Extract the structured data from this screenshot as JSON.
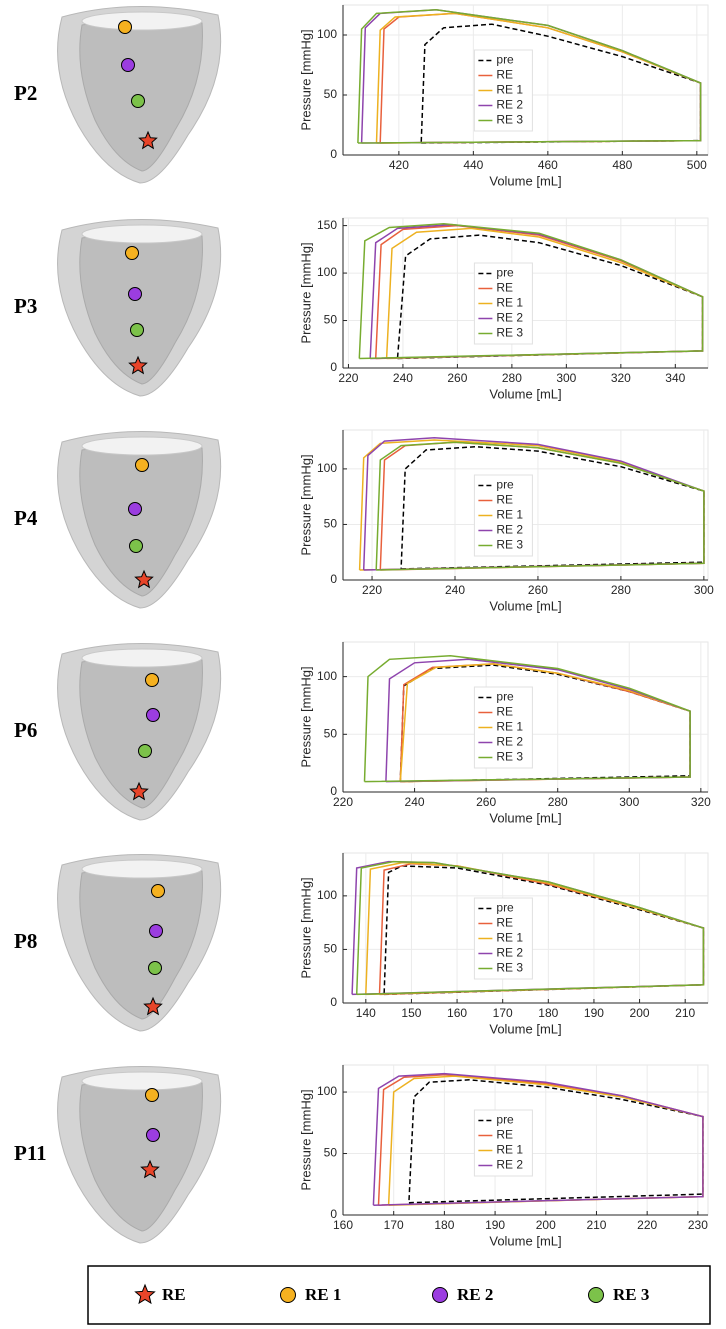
{
  "panels": [
    "P2",
    "P3",
    "P4",
    "P6",
    "P8",
    "P11"
  ],
  "marker_legend": [
    "RE",
    "RE 1",
    "RE 2",
    "RE 3"
  ],
  "chart_data": [
    {
      "type": "line",
      "xlabel": "Volume [mL]",
      "ylabel": "Pressure [mmHg]",
      "grid": true,
      "legend": "center",
      "xlim": [
        405,
        503
      ],
      "xticks": [
        420,
        440,
        460,
        480,
        500
      ],
      "ylim": [
        0,
        125
      ],
      "yticks": [
        0,
        50,
        100
      ],
      "series": [
        {
          "name": "pre",
          "color": "#000000",
          "line_style": "dashed",
          "x": [
            426,
            501,
            501,
            480,
            460,
            445,
            432,
            427,
            426
          ],
          "values": [
            10,
            12,
            60,
            82,
            99,
            109,
            106,
            92,
            10
          ]
        },
        {
          "name": "RE",
          "color": "#e8603c",
          "x": [
            415,
            501,
            501,
            480,
            460,
            435,
            420,
            416,
            415
          ],
          "values": [
            10,
            12,
            60,
            86,
            106,
            118,
            115,
            105,
            10
          ]
        },
        {
          "name": "RE 1",
          "color": "#edb120",
          "x": [
            414,
            501,
            501,
            480,
            460,
            435,
            419,
            415,
            414
          ],
          "values": [
            10,
            12,
            60,
            86,
            106,
            118,
            115,
            104,
            10
          ]
        },
        {
          "name": "RE 2",
          "color": "#8e44ad",
          "x": [
            410,
            501,
            501,
            480,
            460,
            430,
            415,
            411,
            410
          ],
          "values": [
            10,
            12,
            60,
            87,
            108,
            121,
            118,
            106,
            10
          ]
        },
        {
          "name": "RE 3",
          "color": "#77ac30",
          "x": [
            409,
            501,
            501,
            480,
            460,
            430,
            414,
            410,
            409
          ],
          "values": [
            10,
            12,
            60,
            87,
            108,
            121,
            118,
            105,
            10
          ]
        }
      ]
    },
    {
      "type": "line",
      "xlabel": "Volume [mL]",
      "ylabel": "Pressure [mmHg]",
      "grid": true,
      "legend": "center",
      "xlim": [
        218,
        352
      ],
      "xticks": [
        220,
        240,
        260,
        280,
        300,
        320,
        340
      ],
      "ylim": [
        0,
        158
      ],
      "yticks": [
        0,
        50,
        100,
        150
      ],
      "series": [
        {
          "name": "pre",
          "color": "#000000",
          "line_style": "dashed",
          "x": [
            238,
            350,
            350,
            320,
            290,
            268,
            250,
            241,
            238
          ],
          "values": [
            10,
            18,
            75,
            108,
            132,
            140,
            136,
            118,
            10
          ]
        },
        {
          "name": "RE",
          "color": "#e8603c",
          "x": [
            230,
            350,
            350,
            320,
            290,
            260,
            240,
            232,
            230
          ],
          "values": [
            10,
            18,
            75,
            113,
            140,
            150,
            146,
            130,
            10
          ]
        },
        {
          "name": "RE 1",
          "color": "#edb120",
          "x": [
            234,
            350,
            350,
            320,
            290,
            265,
            245,
            236,
            234
          ],
          "values": [
            10,
            18,
            75,
            111,
            138,
            147,
            143,
            126,
            10
          ]
        },
        {
          "name": "RE 2",
          "color": "#8e44ad",
          "x": [
            228,
            350,
            350,
            320,
            290,
            258,
            238,
            230,
            228
          ],
          "values": [
            10,
            18,
            75,
            114,
            141,
            151,
            147,
            132,
            10
          ]
        },
        {
          "name": "RE 3",
          "color": "#77ac30",
          "x": [
            224,
            350,
            350,
            320,
            290,
            255,
            235,
            226,
            224
          ],
          "values": [
            10,
            18,
            75,
            114,
            142,
            152,
            148,
            134,
            10
          ]
        }
      ]
    },
    {
      "type": "line",
      "xlabel": "Volume [mL]",
      "ylabel": "Pressure [mmHg]",
      "grid": true,
      "legend": "center",
      "xlim": [
        213,
        301
      ],
      "xticks": [
        220,
        240,
        260,
        280,
        300
      ],
      "ylim": [
        0,
        135
      ],
      "yticks": [
        0,
        50,
        100
      ],
      "series": [
        {
          "name": "pre",
          "color": "#000000",
          "line_style": "dashed",
          "x": [
            227,
            300,
            300,
            280,
            260,
            245,
            233,
            228,
            227
          ],
          "values": [
            10,
            16,
            80,
            102,
            116,
            120,
            117,
            100,
            10
          ]
        },
        {
          "name": "RE",
          "color": "#e8603c",
          "x": [
            222,
            300,
            300,
            280,
            260,
            240,
            228,
            223,
            222
          ],
          "values": [
            9,
            15,
            80,
            105,
            119,
            124,
            121,
            108,
            9
          ]
        },
        {
          "name": "RE 1",
          "color": "#edb120",
          "x": [
            217,
            300,
            300,
            280,
            260,
            235,
            222,
            218,
            217
          ],
          "values": [
            9,
            15,
            80,
            106,
            121,
            126,
            123,
            110,
            9
          ]
        },
        {
          "name": "RE 2",
          "color": "#8e44ad",
          "x": [
            218,
            300,
            300,
            280,
            260,
            235,
            223,
            219,
            218
          ],
          "values": [
            9,
            15,
            80,
            107,
            122,
            128,
            125,
            112,
            9
          ]
        },
        {
          "name": "RE 3",
          "color": "#77ac30",
          "x": [
            221,
            300,
            300,
            280,
            260,
            240,
            227,
            222,
            221
          ],
          "values": [
            9,
            15,
            80,
            105,
            119,
            124,
            121,
            108,
            9
          ]
        }
      ]
    },
    {
      "type": "line",
      "xlabel": "Volume [mL]",
      "ylabel": "Pressure [mmHg]",
      "grid": true,
      "legend": "center",
      "xlim": [
        220,
        322
      ],
      "xticks": [
        220,
        240,
        260,
        280,
        300,
        320
      ],
      "ylim": [
        0,
        130
      ],
      "yticks": [
        0,
        50,
        100
      ],
      "series": [
        {
          "name": "pre",
          "color": "#000000",
          "line_style": "dashed",
          "x": [
            236,
            317,
            317,
            300,
            280,
            262,
            245,
            237,
            236
          ],
          "values": [
            9,
            14,
            70,
            87,
            102,
            110,
            107,
            92,
            9
          ]
        },
        {
          "name": "RE",
          "color": "#e8603c",
          "x": [
            236,
            317,
            317,
            300,
            280,
            262,
            245,
            237,
            236
          ],
          "values": [
            9,
            13,
            70,
            87,
            103,
            111,
            108,
            93,
            9
          ]
        },
        {
          "name": "RE 1",
          "color": "#edb120",
          "x": [
            236,
            317,
            317,
            300,
            280,
            262,
            246,
            238,
            236
          ],
          "values": [
            9,
            13,
            70,
            88,
            103,
            111,
            108,
            94,
            9
          ]
        },
        {
          "name": "RE 2",
          "color": "#8e44ad",
          "x": [
            232,
            317,
            317,
            300,
            280,
            255,
            240,
            233,
            232
          ],
          "values": [
            9,
            13,
            70,
            89,
            106,
            115,
            112,
            98,
            9
          ]
        },
        {
          "name": "RE 3",
          "color": "#77ac30",
          "x": [
            226,
            317,
            317,
            300,
            280,
            250,
            233,
            227,
            226
          ],
          "values": [
            9,
            13,
            70,
            90,
            107,
            118,
            115,
            100,
            9
          ]
        }
      ]
    },
    {
      "type": "line",
      "xlabel": "Volume [mL]",
      "ylabel": "Pressure [mmHg]",
      "grid": true,
      "legend": "center",
      "xlim": [
        135,
        215
      ],
      "xticks": [
        140,
        150,
        160,
        170,
        180,
        190,
        200,
        210
      ],
      "ylim": [
        0,
        140
      ],
      "yticks": [
        0,
        50,
        100
      ],
      "series": [
        {
          "name": "pre",
          "color": "#000000",
          "line_style": "dashed",
          "x": [
            144,
            214,
            214,
            200,
            180,
            160,
            148,
            145,
            144
          ],
          "values": [
            8,
            17,
            70,
            87,
            110,
            126,
            128,
            122,
            8
          ]
        },
        {
          "name": "RE",
          "color": "#e8603c",
          "x": [
            143,
            214,
            214,
            200,
            180,
            160,
            150,
            144,
            143
          ],
          "values": [
            8,
            17,
            70,
            88,
            111,
            128,
            130,
            124,
            8
          ]
        },
        {
          "name": "RE 1",
          "color": "#edb120",
          "x": [
            140,
            214,
            214,
            200,
            180,
            160,
            148,
            141,
            140
          ],
          "values": [
            8,
            17,
            70,
            88,
            112,
            128,
            131,
            125,
            8
          ]
        },
        {
          "name": "RE 2",
          "color": "#8e44ad",
          "x": [
            137,
            214,
            214,
            200,
            180,
            155,
            145,
            138,
            137
          ],
          "values": [
            8,
            17,
            70,
            89,
            113,
            131,
            132,
            126,
            8
          ]
        },
        {
          "name": "RE 3",
          "color": "#77ac30",
          "x": [
            138,
            214,
            214,
            200,
            180,
            155,
            146,
            139,
            138
          ],
          "values": [
            8,
            17,
            70,
            89,
            113,
            131,
            132,
            126,
            8
          ]
        }
      ]
    },
    {
      "type": "line",
      "xlabel": "Volume [mL]",
      "ylabel": "Pressure [mmHg]",
      "grid": true,
      "legend": "center",
      "xlim": [
        160,
        232
      ],
      "xticks": [
        160,
        170,
        180,
        190,
        200,
        210,
        220,
        230
      ],
      "ylim": [
        0,
        122
      ],
      "yticks": [
        0,
        50,
        100
      ],
      "series": [
        {
          "name": "pre",
          "color": "#000000",
          "line_style": "dashed",
          "x": [
            173,
            231,
            231,
            215,
            200,
            185,
            177,
            174,
            173
          ],
          "values": [
            10,
            17,
            80,
            94,
            104,
            110,
            108,
            96,
            10
          ]
        },
        {
          "name": "RE",
          "color": "#e8603c",
          "x": [
            167,
            231,
            231,
            215,
            200,
            180,
            172,
            168,
            167
          ],
          "values": [
            8,
            15,
            80,
            97,
            107,
            114,
            112,
            102,
            8
          ]
        },
        {
          "name": "RE 1",
          "color": "#edb120",
          "x": [
            169,
            231,
            231,
            215,
            200,
            182,
            174,
            170,
            169
          ],
          "values": [
            8,
            15,
            80,
            96,
            106,
            113,
            111,
            100,
            8
          ]
        },
        {
          "name": "RE 2",
          "color": "#8e44ad",
          "x": [
            166,
            231,
            231,
            215,
            200,
            180,
            171,
            167,
            166
          ],
          "values": [
            8,
            15,
            80,
            97,
            108,
            115,
            113,
            103,
            8
          ]
        }
      ]
    }
  ]
}
